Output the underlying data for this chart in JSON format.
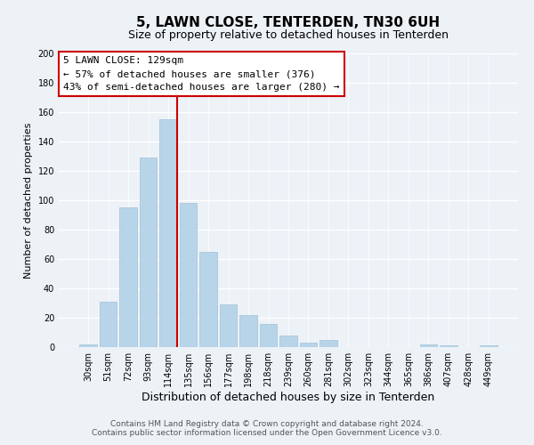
{
  "title": "5, LAWN CLOSE, TENTERDEN, TN30 6UH",
  "subtitle": "Size of property relative to detached houses in Tenterden",
  "xlabel": "Distribution of detached houses by size in Tenterden",
  "ylabel": "Number of detached properties",
  "bar_labels": [
    "30sqm",
    "51sqm",
    "72sqm",
    "93sqm",
    "114sqm",
    "135sqm",
    "156sqm",
    "177sqm",
    "198sqm",
    "218sqm",
    "239sqm",
    "260sqm",
    "281sqm",
    "302sqm",
    "323sqm",
    "344sqm",
    "365sqm",
    "386sqm",
    "407sqm",
    "428sqm",
    "449sqm"
  ],
  "bar_values": [
    2,
    31,
    95,
    129,
    155,
    98,
    65,
    29,
    22,
    16,
    8,
    3,
    5,
    0,
    0,
    0,
    0,
    2,
    1,
    0,
    1
  ],
  "bar_color": "#b8d4e8",
  "bar_edge_color": "#a0c0d8",
  "vline_color": "#cc0000",
  "ylim": [
    0,
    200
  ],
  "yticks": [
    0,
    20,
    40,
    60,
    80,
    100,
    120,
    140,
    160,
    180,
    200
  ],
  "annotation_title": "5 LAWN CLOSE: 129sqm",
  "annotation_line1": "← 57% of detached houses are smaller (376)",
  "annotation_line2": "43% of semi-detached houses are larger (280) →",
  "annotation_box_color": "#ffffff",
  "annotation_box_edge": "#cc0000",
  "footer_line1": "Contains HM Land Registry data © Crown copyright and database right 2024.",
  "footer_line2": "Contains public sector information licensed under the Open Government Licence v3.0.",
  "background_color": "#edf2f7",
  "grid_color": "#ffffff",
  "title_fontsize": 11,
  "subtitle_fontsize": 9,
  "xlabel_fontsize": 9,
  "ylabel_fontsize": 8,
  "tick_fontsize": 7,
  "annotation_fontsize": 8,
  "footer_fontsize": 6.5
}
